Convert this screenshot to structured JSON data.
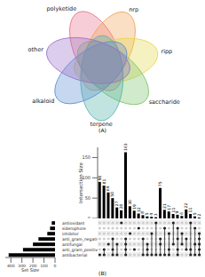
{
  "chart_data": [
    {
      "type": "venn",
      "title": "(A)",
      "sets": [
        {
          "name": "polyketide",
          "color": "#e8738b"
        },
        {
          "name": "nrp",
          "color": "#f4a259"
        },
        {
          "name": "ripp",
          "color": "#e6d84a"
        },
        {
          "name": "saccharide",
          "color": "#7cc36a"
        },
        {
          "name": "terpene",
          "color": "#4fb3a9"
        },
        {
          "name": "alkaloid",
          "color": "#5b8fd1"
        },
        {
          "name": "other",
          "color": "#9b6fc9"
        }
      ]
    },
    {
      "type": "upset",
      "title": "(B)",
      "ylabel": "Intersection Size",
      "values": [
        90,
        81,
        64,
        50,
        27,
        20,
        163,
        30,
        19,
        12,
        8,
        5,
        4,
        3,
        75,
        21,
        17,
        11,
        9,
        6,
        22,
        11,
        5,
        2
      ],
      "ylim": [
        0,
        175
      ],
      "yticks": [
        0,
        50,
        100,
        150
      ],
      "data_labels": true,
      "color": "#000000",
      "membership": [
        [
          6
        ],
        [
          5,
          6
        ],
        [
          4
        ],
        [
          3,
          5,
          6
        ],
        [
          4,
          6
        ],
        [
          0
        ],
        [
          3,
          4,
          5,
          6
        ],
        [
          2
        ],
        [
          5
        ],
        [
          1
        ],
        [
          3,
          6
        ],
        [
          4,
          5,
          6
        ],
        [
          2,
          6
        ],
        [
          0,
          6
        ],
        [
          3,
          4,
          6
        ],
        [
          1,
          6
        ],
        [
          2,
          5,
          6
        ],
        [
          0,
          4
        ],
        [
          1,
          3,
          5,
          6
        ],
        [
          2,
          4
        ],
        [
          3,
          5
        ],
        [
          0,
          5,
          6
        ],
        [
          1,
          4,
          6
        ],
        [
          2,
          3,
          4,
          5,
          6
        ]
      ],
      "set_sizes": {
        "type": "bar",
        "orientation": "horizontal",
        "xlabel": "Set Size",
        "categories": [
          "antioxidant",
          "siderophore",
          "inhibitor",
          "anti_gram_negative",
          "antifungal",
          "anti_gram_positive",
          "antibacterial"
        ],
        "values": [
          30,
          45,
          70,
          150,
          200,
          290,
          420
        ],
        "xlim": [
          0,
          450
        ],
        "xticks": [
          400,
          300,
          200,
          100,
          0
        ],
        "color": "#000000"
      }
    }
  ]
}
